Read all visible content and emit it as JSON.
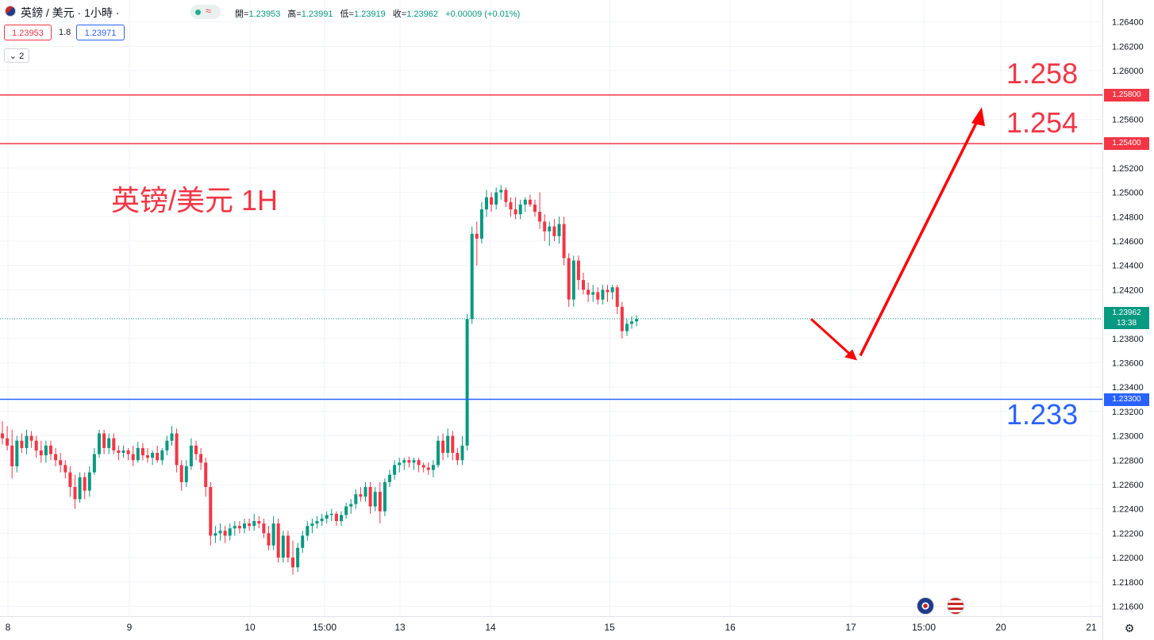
{
  "header": {
    "symbol": "英鎊 / 美元 · 1小時 ·",
    "status_icon": "≈",
    "ohlc": [
      {
        "label": "開=",
        "value": "1.23953"
      },
      {
        "label": "高=",
        "value": "1.23991"
      },
      {
        "label": "低=",
        "value": "1.23919"
      },
      {
        "label": "收=",
        "value": "1.23962"
      },
      {
        "label": "",
        "value": "+0.00009 (+0.01%)"
      }
    ],
    "bid": "1.23953",
    "spread": "1.8",
    "ask": "1.23971",
    "indicators_count": "2"
  },
  "colors": {
    "up": "#089981",
    "down": "#f23645",
    "resistance": "#f23645",
    "support": "#2962ff",
    "arrow": "#ff0000"
  },
  "chart_data": {
    "type": "candlestick",
    "title": "英镑/美元 1H",
    "ylim": [
      1.2155,
      1.2645
    ],
    "y_ticks": [
      "1.26400",
      "1.26200",
      "1.26000",
      "1.25600",
      "1.25200",
      "1.25000",
      "1.24800",
      "1.24600",
      "1.24400",
      "1.24200",
      "1.23800",
      "1.23600",
      "1.23400",
      "1.23200",
      "1.23000",
      "1.22800",
      "1.22600",
      "1.22400",
      "1.22200",
      "1.22000",
      "1.21800",
      "1.21600"
    ],
    "x_ticks": [
      "8",
      "9",
      "10",
      "15:00",
      "13",
      "14",
      "15",
      "16",
      "17",
      "15:00",
      "20",
      "21"
    ],
    "current_price": "1.23962",
    "countdown": "13:38",
    "levels": [
      {
        "value": 1.258,
        "tag": "1.25800",
        "label": "1.258",
        "role": "resistance"
      },
      {
        "value": 1.254,
        "tag": "1.25400",
        "label": "1.254",
        "role": "resistance"
      },
      {
        "value": 1.233,
        "tag": "1.23300",
        "label": "1.233",
        "role": "support"
      }
    ],
    "projection": [
      1.2396,
      1.2362,
      1.257
    ],
    "candles": [
      [
        1.2302,
        1.2312,
        1.2293,
        1.2298
      ],
      [
        1.2298,
        1.2308,
        1.2288,
        1.2292
      ],
      [
        1.2292,
        1.2305,
        1.2265,
        1.2275
      ],
      [
        1.2275,
        1.23,
        1.227,
        1.2296
      ],
      [
        1.2296,
        1.2302,
        1.2286,
        1.229
      ],
      [
        1.229,
        1.2305,
        1.2285,
        1.23
      ],
      [
        1.23,
        1.2304,
        1.229,
        1.2296
      ],
      [
        1.2296,
        1.23,
        1.2282,
        1.2288
      ],
      [
        1.2288,
        1.2296,
        1.2278,
        1.2284
      ],
      [
        1.2284,
        1.2296,
        1.2278,
        1.2292
      ],
      [
        1.2292,
        1.2296,
        1.228,
        1.2285
      ],
      [
        1.2285,
        1.229,
        1.2275,
        1.228
      ],
      [
        1.228,
        1.2286,
        1.227,
        1.2276
      ],
      [
        1.2276,
        1.228,
        1.2265,
        1.227
      ],
      [
        1.227,
        1.2275,
        1.225,
        1.2258
      ],
      [
        1.2258,
        1.2268,
        1.224,
        1.2248
      ],
      [
        1.2248,
        1.227,
        1.2245,
        1.2266
      ],
      [
        1.2266,
        1.227,
        1.2248,
        1.2255
      ],
      [
        1.2255,
        1.2275,
        1.225,
        1.227
      ],
      [
        1.227,
        1.229,
        1.2268,
        1.2285
      ],
      [
        1.2285,
        1.2305,
        1.2282,
        1.2302
      ],
      [
        1.2302,
        1.2305,
        1.2285,
        1.229
      ],
      [
        1.229,
        1.2302,
        1.2285,
        1.2298
      ],
      [
        1.2298,
        1.2302,
        1.2285,
        1.2288
      ],
      [
        1.2288,
        1.2292,
        1.228,
        1.2286
      ],
      [
        1.2286,
        1.2292,
        1.2282,
        1.2288
      ],
      [
        1.2288,
        1.229,
        1.228,
        1.2285
      ],
      [
        1.2285,
        1.2292,
        1.2275,
        1.228
      ],
      [
        1.228,
        1.2295,
        1.2278,
        1.229
      ],
      [
        1.229,
        1.2294,
        1.228,
        1.2284
      ],
      [
        1.2284,
        1.229,
        1.2278,
        1.2282
      ],
      [
        1.2282,
        1.2288,
        1.2276,
        1.2286
      ],
      [
        1.2286,
        1.2292,
        1.2278,
        1.228
      ],
      [
        1.228,
        1.229,
        1.2276,
        1.2288
      ],
      [
        1.2288,
        1.23,
        1.2284,
        1.2296
      ],
      [
        1.2296,
        1.2308,
        1.2292,
        1.2302
      ],
      [
        1.2302,
        1.2306,
        1.227,
        1.2276
      ],
      [
        1.2276,
        1.228,
        1.2255,
        1.2262
      ],
      [
        1.2262,
        1.228,
        1.2258,
        1.2275
      ],
      [
        1.2275,
        1.2298,
        1.2272,
        1.2292
      ],
      [
        1.2292,
        1.2296,
        1.228,
        1.2285
      ],
      [
        1.2285,
        1.229,
        1.2272,
        1.2278
      ],
      [
        1.2278,
        1.2282,
        1.225,
        1.2258
      ],
      [
        1.2258,
        1.2262,
        1.221,
        1.2218
      ],
      [
        1.2218,
        1.2226,
        1.2212,
        1.222
      ],
      [
        1.222,
        1.2228,
        1.2214,
        1.2222
      ],
      [
        1.2222,
        1.2226,
        1.2212,
        1.2218
      ],
      [
        1.2218,
        1.2228,
        1.2214,
        1.2224
      ],
      [
        1.2224,
        1.223,
        1.2218,
        1.2226
      ],
      [
        1.2226,
        1.223,
        1.222,
        1.2224
      ],
      [
        1.2224,
        1.2232,
        1.222,
        1.2228
      ],
      [
        1.2228,
        1.2232,
        1.2222,
        1.2226
      ],
      [
        1.2226,
        1.2236,
        1.2222,
        1.223
      ],
      [
        1.223,
        1.2234,
        1.2224,
        1.2228
      ],
      [
        1.2228,
        1.2232,
        1.2216,
        1.222
      ],
      [
        1.222,
        1.2226,
        1.2206,
        1.221
      ],
      [
        1.221,
        1.2234,
        1.2206,
        1.2228
      ],
      [
        1.2228,
        1.2232,
        1.2196,
        1.22
      ],
      [
        1.22,
        1.2222,
        1.2196,
        1.2218
      ],
      [
        1.2218,
        1.2222,
        1.2196,
        1.22
      ],
      [
        1.22,
        1.2214,
        1.2186,
        1.2192
      ],
      [
        1.2192,
        1.2212,
        1.2188,
        1.2208
      ],
      [
        1.2208,
        1.2222,
        1.2204,
        1.2218
      ],
      [
        1.2218,
        1.223,
        1.2214,
        1.2226
      ],
      [
        1.2226,
        1.2232,
        1.222,
        1.2228
      ],
      [
        1.2228,
        1.2234,
        1.2224,
        1.223
      ],
      [
        1.223,
        1.2236,
        1.2226,
        1.2232
      ],
      [
        1.2232,
        1.2238,
        1.2228,
        1.2235
      ],
      [
        1.2235,
        1.224,
        1.223,
        1.2236
      ],
      [
        1.2236,
        1.2238,
        1.2226,
        1.223
      ],
      [
        1.223,
        1.2238,
        1.2226,
        1.2235
      ],
      [
        1.2235,
        1.2245,
        1.2232,
        1.2242
      ],
      [
        1.2242,
        1.2248,
        1.2236,
        1.2244
      ],
      [
        1.2244,
        1.2256,
        1.224,
        1.2252
      ],
      [
        1.2252,
        1.2258,
        1.2246,
        1.225
      ],
      [
        1.225,
        1.2262,
        1.2246,
        1.2258
      ],
      [
        1.2258,
        1.2262,
        1.2236,
        1.2242
      ],
      [
        1.2242,
        1.2258,
        1.2238,
        1.2254
      ],
      [
        1.2254,
        1.2262,
        1.2228,
        1.2238
      ],
      [
        1.2238,
        1.2265,
        1.2234,
        1.2262
      ],
      [
        1.2262,
        1.2272,
        1.2258,
        1.2268
      ],
      [
        1.2268,
        1.228,
        1.2264,
        1.2276
      ],
      [
        1.2276,
        1.2282,
        1.227,
        1.2278
      ],
      [
        1.2278,
        1.2282,
        1.2272,
        1.228
      ],
      [
        1.228,
        1.2283,
        1.2274,
        1.2278
      ],
      [
        1.2278,
        1.2282,
        1.2272,
        1.228
      ],
      [
        1.228,
        1.2282,
        1.227,
        1.2276
      ],
      [
        1.2276,
        1.2278,
        1.227,
        1.2274
      ],
      [
        1.2274,
        1.2278,
        1.2268,
        1.2272
      ],
      [
        1.2272,
        1.228,
        1.2266,
        1.2276
      ],
      [
        1.2276,
        1.23,
        1.2274,
        1.2296
      ],
      [
        1.2296,
        1.2302,
        1.228,
        1.2286
      ],
      [
        1.2286,
        1.2306,
        1.2282,
        1.23
      ],
      [
        1.23,
        1.2304,
        1.228,
        1.2286
      ],
      [
        1.2286,
        1.229,
        1.2276,
        1.228
      ],
      [
        1.228,
        1.23,
        1.2276,
        1.2292
      ],
      [
        1.2292,
        1.24,
        1.2288,
        1.2396
      ],
      [
        1.2396,
        1.2472,
        1.2392,
        1.2466
      ],
      [
        1.2466,
        1.2476,
        1.244,
        1.2462
      ],
      [
        1.2462,
        1.2492,
        1.2458,
        1.2486
      ],
      [
        1.2486,
        1.2502,
        1.248,
        1.2496
      ],
      [
        1.2496,
        1.25,
        1.2484,
        1.249
      ],
      [
        1.249,
        1.2504,
        1.2486,
        1.25
      ],
      [
        1.25,
        1.2506,
        1.2494,
        1.2502
      ],
      [
        1.2502,
        1.2504,
        1.2488,
        1.2492
      ],
      [
        1.2492,
        1.2496,
        1.248,
        1.2486
      ],
      [
        1.2486,
        1.2496,
        1.2478,
        1.2482
      ],
      [
        1.2482,
        1.2494,
        1.2478,
        1.249
      ],
      [
        1.249,
        1.2496,
        1.2484,
        1.2494
      ],
      [
        1.2494,
        1.2498,
        1.2488,
        1.249
      ],
      [
        1.249,
        1.2494,
        1.248,
        1.2484
      ],
      [
        1.2484,
        1.25,
        1.247,
        1.2476
      ],
      [
        1.2476,
        1.2482,
        1.246,
        1.2468
      ],
      [
        1.2468,
        1.2476,
        1.2456,
        1.2472
      ],
      [
        1.2472,
        1.2478,
        1.246,
        1.2464
      ],
      [
        1.2464,
        1.248,
        1.2458,
        1.2474
      ],
      [
        1.2474,
        1.248,
        1.244,
        1.2446
      ],
      [
        1.2446,
        1.245,
        1.2406,
        1.2412
      ],
      [
        1.2412,
        1.2448,
        1.2406,
        1.2444
      ],
      [
        1.2444,
        1.2448,
        1.242,
        1.2428
      ],
      [
        1.2428,
        1.2434,
        1.2416,
        1.242
      ],
      [
        1.242,
        1.2426,
        1.241,
        1.2416
      ],
      [
        1.2416,
        1.2424,
        1.241,
        1.2418
      ],
      [
        1.2418,
        1.2422,
        1.2408,
        1.2412
      ],
      [
        1.2412,
        1.2424,
        1.2408,
        1.242
      ],
      [
        1.242,
        1.2424,
        1.241,
        1.2418
      ],
      [
        1.2418,
        1.2424,
        1.2412,
        1.2422
      ],
      [
        1.2422,
        1.2424,
        1.24,
        1.2406
      ],
      [
        1.2406,
        1.241,
        1.238,
        1.2386
      ],
      [
        1.2386,
        1.2396,
        1.2382,
        1.2392
      ],
      [
        1.2392,
        1.2398,
        1.2388,
        1.2394
      ],
      [
        1.2394,
        1.2399,
        1.239,
        1.2396
      ]
    ]
  }
}
